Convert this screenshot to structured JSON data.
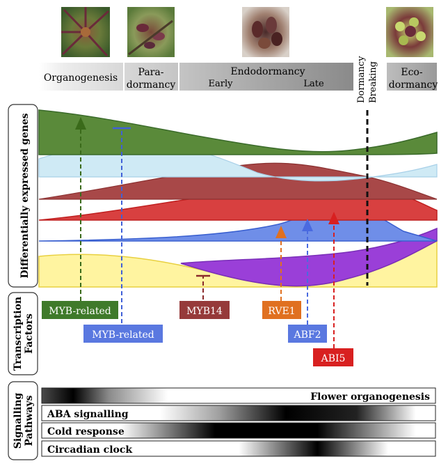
{
  "stages": {
    "organogenesis": "Organogenesis",
    "paradormancy_1": "Para-",
    "paradormancy_2": "dormancy",
    "endodormancy": "Endodormancy",
    "early": "Early",
    "late": "Late",
    "dormancy_breaking_1": "Dormancy",
    "dormancy_breaking_2": "Breaking",
    "ecodormancy_1": "Eco-",
    "ecodormancy_2": "dormancy"
  },
  "sections": {
    "degs": "Differentially expressed genes",
    "tf_1": "Transcription",
    "tf_2": "Factors",
    "sp_1": "Signalling",
    "sp_2": "Pathways"
  },
  "transcription_factors": {
    "myb_related_green": "MYB-related",
    "myb_related_blue": "MYB-related",
    "myb14": "MYB14",
    "rve1": "RVE1",
    "abf2": "ABF2",
    "abi5": "ABI5"
  },
  "pathways": {
    "flower": "Flower organogenesis",
    "aba": "ABA signalling",
    "cold": "Cold response",
    "circadian": "Circadian clock"
  },
  "colors": {
    "green": "#5a8a3a",
    "light_blue": "#cfeaf5",
    "dark_red": "#a84848",
    "red": "#d84040",
    "blue": "#6f8ee8",
    "purple": "#9a3fd8",
    "yellow": "#fff4a0",
    "orange": "#e07020"
  }
}
